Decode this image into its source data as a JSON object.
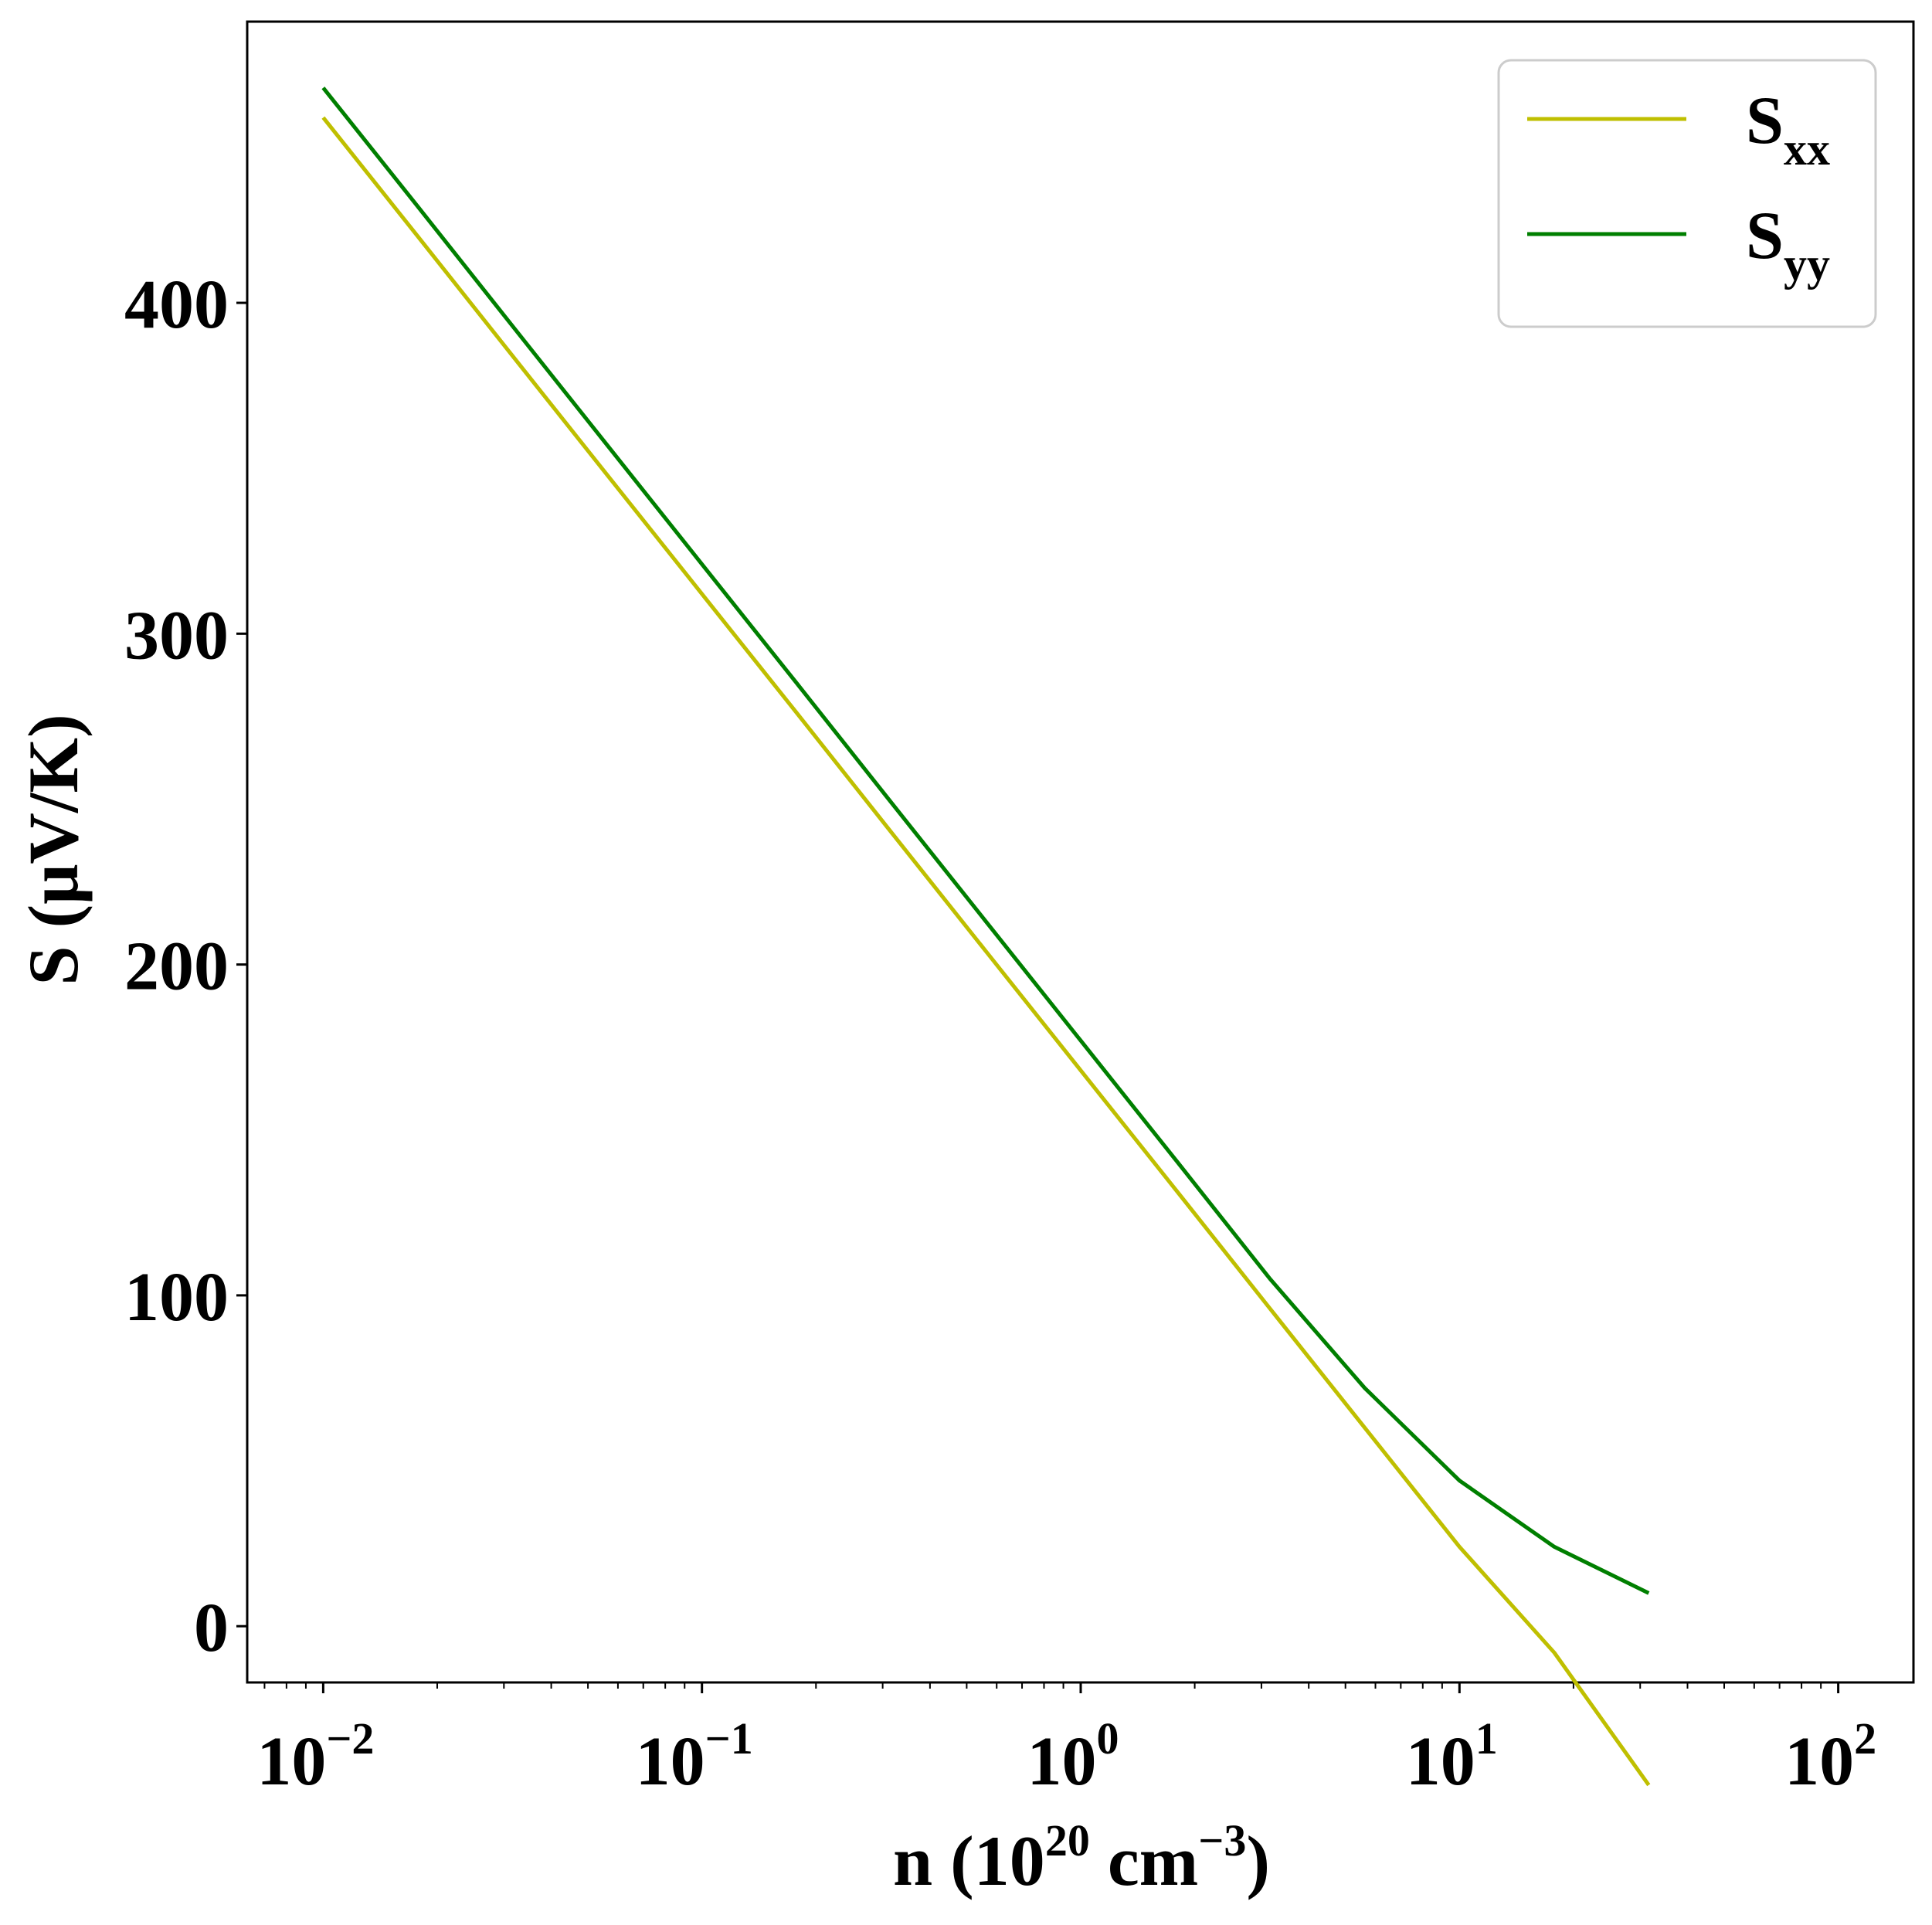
{
  "chart_data": {
    "type": "line",
    "xscale": "log",
    "xlabel": {
      "base": "n (10",
      "exp1": "20",
      "mid": " cm",
      "exp2": "−3",
      "end": ")"
    },
    "ylabel": "S (μV/K)",
    "xlim": [
      0.0063,
      158
    ],
    "ylim": [
      -17,
      485
    ],
    "xticks": [
      {
        "value": 0.01,
        "base": "10",
        "exp": "−2"
      },
      {
        "value": 0.1,
        "base": "10",
        "exp": "−1"
      },
      {
        "value": 1,
        "base": "10",
        "exp": "0"
      },
      {
        "value": 10,
        "base": "10",
        "exp": "1"
      },
      {
        "value": 100,
        "base": "10",
        "exp": "2"
      }
    ],
    "yticks": [
      0,
      100,
      200,
      300,
      400
    ],
    "legend_position": "top-right",
    "grid": false,
    "series": [
      {
        "name": "S_xx",
        "legend_main": "S",
        "legend_sub": "xx",
        "color": "#bfbf00",
        "points": [
          [
            0.01,
            456
          ],
          [
            0.0178,
            420
          ],
          [
            0.0316,
            384
          ],
          [
            0.0562,
            348
          ],
          [
            0.1,
            312
          ],
          [
            0.178,
            276
          ],
          [
            0.316,
            240
          ],
          [
            0.562,
            204
          ],
          [
            1.0,
            168
          ],
          [
            1.78,
            132
          ],
          [
            3.16,
            96
          ],
          [
            5.62,
            60
          ],
          [
            10,
            24
          ],
          [
            17.8,
            -8
          ],
          [
            31.6,
            -48
          ]
        ]
      },
      {
        "name": "S_yy",
        "legend_main": "S",
        "legend_sub": "yy",
        "color": "#007f00",
        "points": [
          [
            0.01,
            465
          ],
          [
            0.0178,
            429
          ],
          [
            0.0316,
            393
          ],
          [
            0.0562,
            357
          ],
          [
            0.1,
            321
          ],
          [
            0.178,
            285
          ],
          [
            0.316,
            249
          ],
          [
            0.562,
            213
          ],
          [
            1.0,
            177
          ],
          [
            1.78,
            141
          ],
          [
            3.16,
            105
          ],
          [
            5.62,
            72
          ],
          [
            10,
            44
          ],
          [
            17.8,
            24
          ],
          [
            31.6,
            10
          ]
        ]
      }
    ]
  }
}
